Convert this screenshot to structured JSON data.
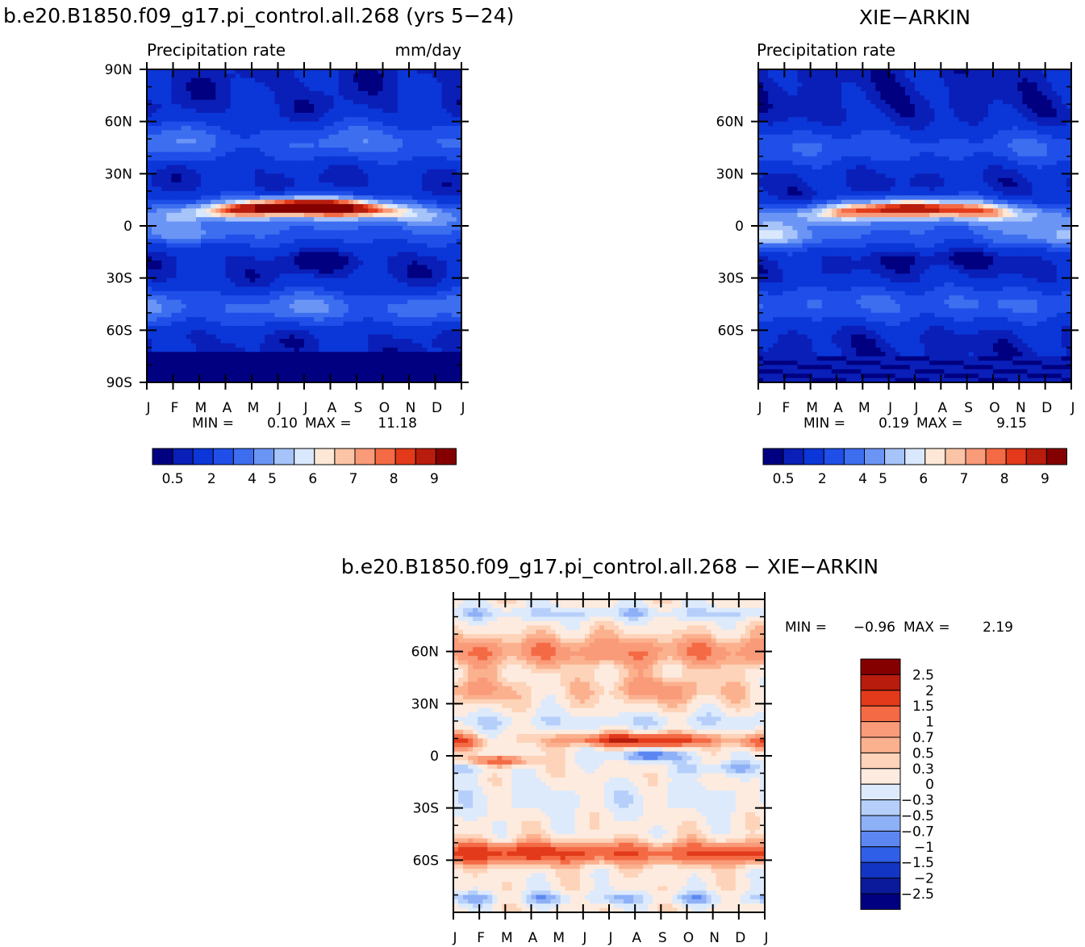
{
  "months": [
    "J",
    "F",
    "M",
    "A",
    "M",
    "J",
    "J",
    "A",
    "S",
    "O",
    "N",
    "D",
    "J"
  ],
  "chart_data": [
    {
      "type": "heatmap",
      "title": "b.e20.B1850.f09_g17.pi_control.all.268 (yrs 5−24)",
      "subtitle_left": "Precipitation rate",
      "subtitle_right": "mm/day",
      "y_ticks": [
        "90N",
        "60N",
        "30N",
        "0",
        "30S",
        "60S",
        "90S"
      ],
      "y_tick_values": [
        90,
        60,
        30,
        0,
        -30,
        -60,
        -90
      ],
      "ylim": [
        -90,
        90
      ],
      "xlim": [
        0,
        12
      ],
      "min_label": "MIN =",
      "min_value": "0.10",
      "max_label": "MAX =",
      "max_value": "11.18",
      "colorbar_labels": [
        "0.5",
        "2",
        "4",
        "5",
        "6",
        "7",
        "8",
        "9"
      ],
      "field": "model"
    },
    {
      "type": "heatmap",
      "title": "XIE−ARKIN",
      "subtitle_left": "Precipitation rate",
      "y_ticks": [
        "60N",
        "30N",
        "0",
        "30S",
        "60S"
      ],
      "y_tick_values": [
        60,
        30,
        0,
        -30,
        -60
      ],
      "ylim": [
        -90,
        90
      ],
      "xlim": [
        0,
        12
      ],
      "min_label": "MIN =",
      "min_value": "0.19",
      "max_label": "MAX =",
      "max_value": "9.15",
      "colorbar_labels": [
        "0.5",
        "2",
        "4",
        "5",
        "6",
        "7",
        "8",
        "9"
      ],
      "field": "obs"
    },
    {
      "type": "heatmap",
      "title": "b.e20.B1850.f09_g17.pi_control.all.268 − XIE−ARKIN",
      "y_ticks": [
        "60N",
        "30N",
        "0",
        "30S",
        "60S"
      ],
      "y_tick_values": [
        60,
        30,
        0,
        -30,
        -60
      ],
      "ylim": [
        -90,
        90
      ],
      "xlim": [
        0,
        12
      ],
      "min_label": "MIN =",
      "min_value": "−0.96",
      "max_label": "MAX =",
      "max_value": "2.19",
      "colorbar_labels": [
        "2.5",
        "2",
        "1.5",
        "1",
        "0.7",
        "0.5",
        "0.3",
        "0",
        "−0.3",
        "−0.5",
        "−0.7",
        "−1",
        "−1.5",
        "−2",
        "−2.5"
      ],
      "field": "diff"
    }
  ],
  "colors": {
    "precip_scale": [
      "#000080",
      "#0a1fb8",
      "#0b36d8",
      "#1f4fe8",
      "#3d6ef0",
      "#6b95f5",
      "#a6c3fa",
      "#d9e8fc",
      "#fde7d6",
      "#fbc4a6",
      "#f99a78",
      "#f46a44",
      "#e23a1a",
      "#b81c0c",
      "#840000"
    ],
    "diff_scale": [
      "#840000",
      "#b81c0c",
      "#e23a1a",
      "#f46a44",
      "#f99a78",
      "#fbb08e",
      "#fdd3b9",
      "#fdebdf",
      "#dceafc",
      "#b6cffa",
      "#8eb0f7",
      "#5c87f2",
      "#2f5fe6",
      "#1335c4",
      "#0a1a9a",
      "#000080"
    ]
  }
}
